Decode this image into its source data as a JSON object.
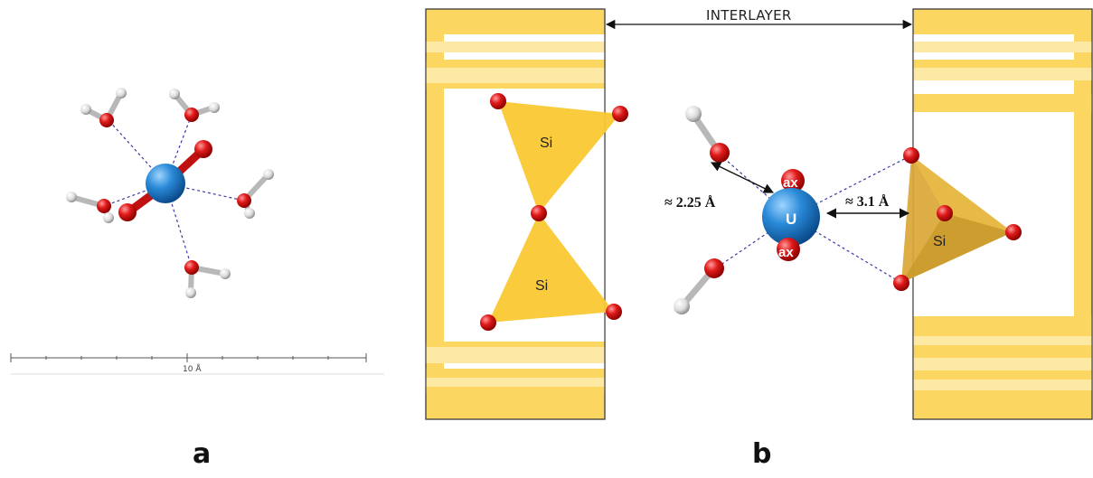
{
  "panel_a": {
    "label": "a",
    "scale_label": "10 Å"
  },
  "panel_b": {
    "label": "b",
    "interlayer_label": "INTERLAYER",
    "si_label_1": "Si",
    "si_label_2": "Si",
    "si_label_3": "Si",
    "uranium_label": "U",
    "axial_label_top": "ax",
    "axial_label_bottom": "ax",
    "distance_water": "≈ 2.25 Å",
    "distance_surface": "≈ 3.1 Å"
  },
  "colors": {
    "layer_fill": "#fbd660",
    "layer_stripe": "#fde9a4",
    "tetrahedron": "#fac833",
    "tetra_right": "#d9a735",
    "oxygen": "#dd1111",
    "hydrogen": "#eeeeee",
    "uranium": "#2a8ad8",
    "hbond": "#3a3aa0"
  }
}
